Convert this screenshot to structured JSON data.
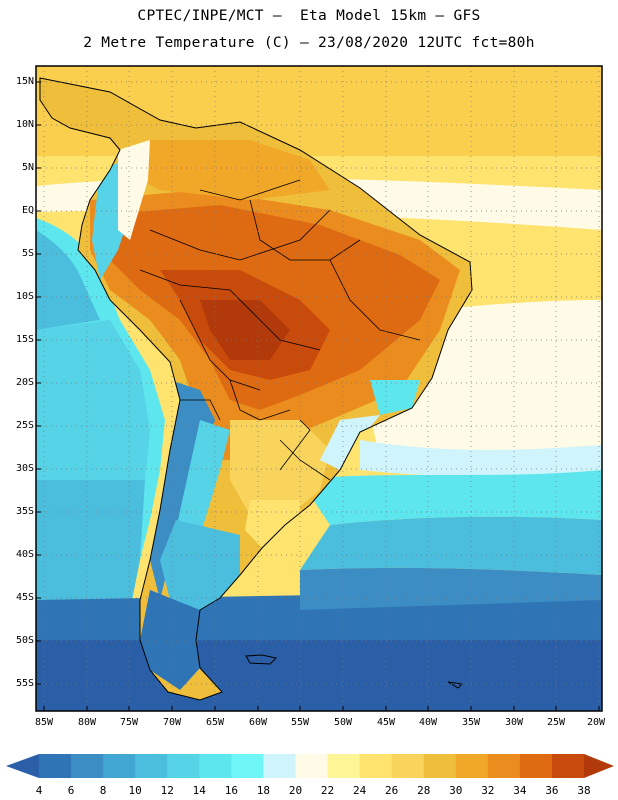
{
  "map": {
    "title_line1": "CPTEC/INPE/MCT –  Eta Model 15km – GFS",
    "title_line2": "2 Metre Temperature (C) – 23/08/2020 12UTC fct=80h",
    "lat_labels": [
      "15N",
      "10N",
      "5N",
      "EQ",
      "5S",
      "10S",
      "15S",
      "20S",
      "25S",
      "30S",
      "35S",
      "40S",
      "45S",
      "50S",
      "55S"
    ],
    "lon_labels": [
      "85W",
      "80W",
      "75W",
      "70W",
      "65W",
      "60W",
      "55W",
      "50W",
      "45W",
      "40W",
      "35W",
      "30W",
      "25W",
      "20W"
    ]
  },
  "colorbar": {
    "labels": [
      "4",
      "6",
      "8",
      "10",
      "12",
      "14",
      "16",
      "18",
      "20",
      "22",
      "24",
      "26",
      "28",
      "30",
      "32",
      "34",
      "36",
      "38"
    ],
    "colors": [
      "#2a5fa8",
      "#2f74b5",
      "#3b8dc4",
      "#42a6d2",
      "#4bbedd",
      "#56d3e6",
      "#5ee6ee",
      "#6ff7f7",
      "#cff4fb",
      "#fffbe6",
      "#fef596",
      "#fee36e",
      "#f9d45d",
      "#efbf3c",
      "#f1a728",
      "#eb8c1e",
      "#de6a12",
      "#c84b0c",
      "#b23a0a"
    ]
  }
}
